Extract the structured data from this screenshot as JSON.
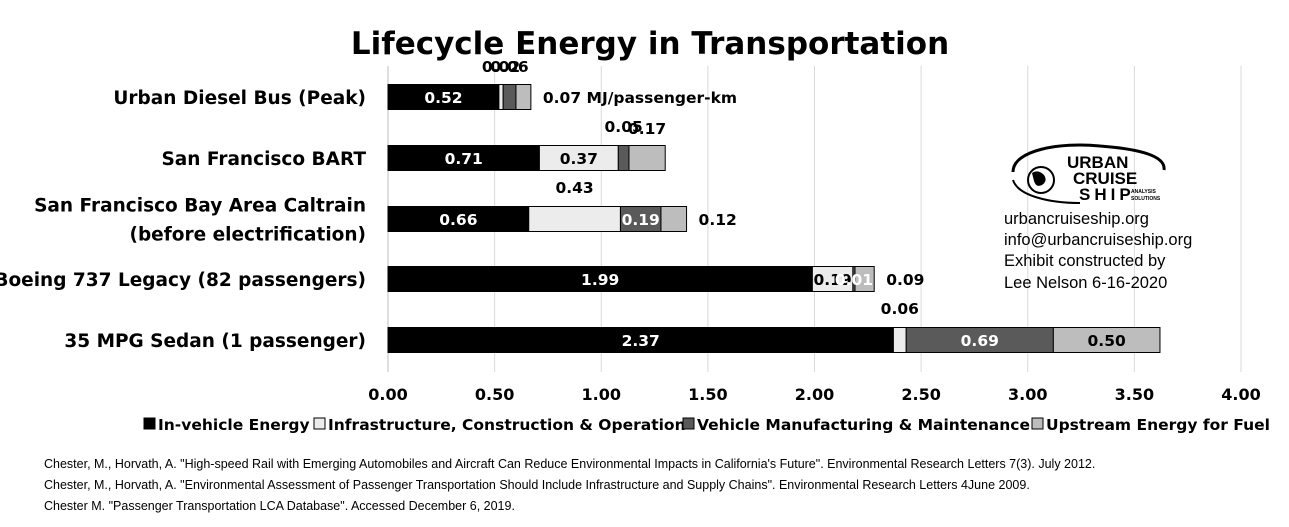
{
  "chart_data": {
    "type": "bar",
    "orientation": "horizontal",
    "stacked": true,
    "title": "Lifecycle Energy in Transportation",
    "categories": [
      "Urban Diesel Bus (Peak)",
      "San Francisco BART",
      [
        "San Francisco Bay Area Caltrain",
        "(before electrification)"
      ],
      "Boeing 737 Legacy (82 passengers)",
      "35 MPG Sedan (1 passenger)"
    ],
    "series": [
      {
        "name": "In-vehicle Energy",
        "color": "#000000",
        "text_color": "#ffffff",
        "values": [
          0.52,
          0.71,
          0.66,
          1.99,
          2.37
        ],
        "labels": [
          "0.52",
          "0.71",
          "0.66",
          "1.99",
          "2.37"
        ]
      },
      {
        "name": "Infrastructure, Construction & Operation",
        "color": "#ececec",
        "text_color": "#000000",
        "values": [
          0.02,
          0.37,
          0.43,
          0.19,
          0.06
        ],
        "labels": [
          "0.02",
          "0.37",
          "0.43",
          "0.19",
          "0.06"
        ]
      },
      {
        "name": "Vehicle Manufacturing & Maintenance",
        "color": "#5a5a5a",
        "text_color": "#ffffff",
        "values": [
          0.06,
          0.05,
          0.19,
          0.01,
          0.69
        ],
        "labels": [
          "0.06",
          "0.05",
          "0.19",
          "0.01",
          "0.69"
        ]
      },
      {
        "name": "Upstream Energy for Fuel",
        "color": "#bdbdbd",
        "text_color": "#000000",
        "values": [
          0.07,
          0.17,
          0.12,
          0.09,
          0.5
        ],
        "labels": [
          "0.07 MJ/passenger-km",
          "0.17",
          "0.12",
          "0.09",
          "0.50"
        ]
      }
    ],
    "xlim": [
      0,
      4
    ],
    "xticks": [
      "0.00",
      "0.50",
      "1.00",
      "1.50",
      "2.00",
      "2.50",
      "3.00",
      "3.50",
      "4.00"
    ],
    "xlabel": "",
    "ylabel": "",
    "grid": "vertical",
    "legend_position": "bottom"
  },
  "brand": {
    "logo_words": [
      "URBAN",
      "CRUISE",
      "SHIP",
      "ANALYSIS",
      "SOLUTIONS"
    ],
    "lines": [
      "urbancruiseship.org",
      "info@urbancruiseship.org",
      "Exhibit constructed by",
      "Lee Nelson 6-16-2020"
    ]
  },
  "sources": [
    "Chester, M., Horvath, A. \"High-speed Rail with Emerging Automobiles and Aircraft Can Reduce Environmental Impacts in California's Future\". Environmental Research Letters 7(3). July 2012.",
    "Chester, M., Horvath, A. \"Environmental Assessment of Passenger Transportation Should Include Infrastructure and Supply Chains\". Environmental Research Letters 4June 2009.",
    "Chester M. \"Passenger Transportation LCA Database\". Accessed December 6, 2019."
  ]
}
